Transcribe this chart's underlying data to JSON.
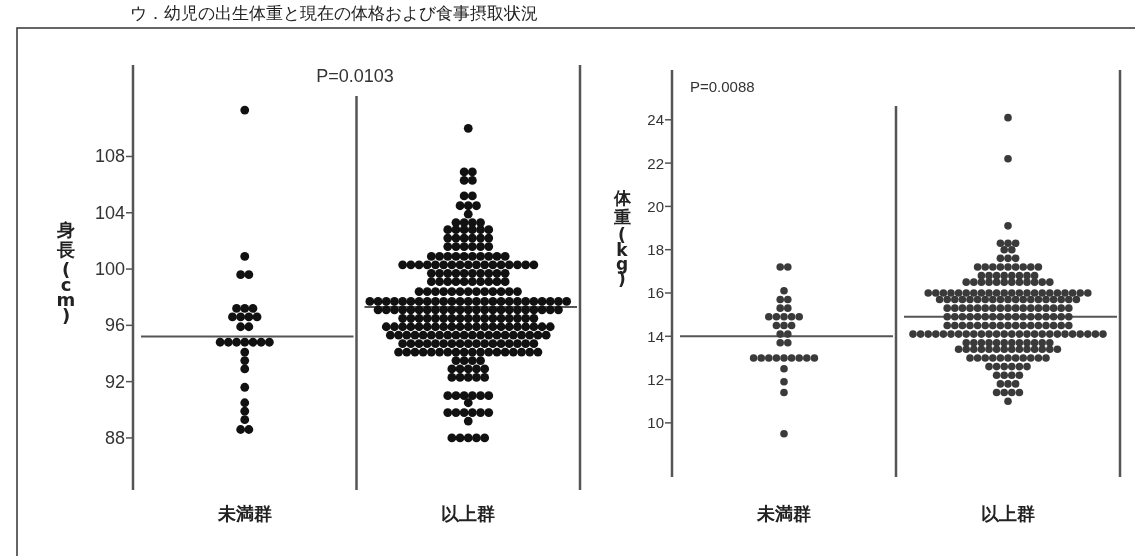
{
  "chart_data": [
    {
      "type": "scatter",
      "title": "ウ．幼児の出生体重と現在の体格および食事摂取状況",
      "categories": [
        "未満群",
        "以上群"
      ],
      "ylabel": "身長(cm)",
      "ylim": [
        84.3,
        114.5
      ],
      "yticks": [
        88,
        92,
        96,
        100,
        104,
        108
      ],
      "marker": "circle",
      "annotations": [
        "P=0.0103"
      ],
      "ref_lines": [
        {
          "axis": "y",
          "value": 95.2,
          "color": "#555555"
        },
        {
          "axis": "y",
          "value": 97.3,
          "color": "#555555"
        }
      ],
      "series": [
        {
          "color": "#111111",
          "x": [
            "未満群",
            "未満群",
            "未満群",
            "未満群",
            "未満群",
            "未満群",
            "未満群",
            "未満群",
            "未満群",
            "未満群",
            "未満群",
            "未満群",
            "未満群",
            "未満群",
            "未満群",
            "未満群",
            "未満群",
            "未満群",
            "未満群",
            "未満群",
            "未満群",
            "未満群",
            "未満群",
            "未満群",
            "未満群",
            "未満群",
            "未満群",
            "未満群",
            "未満群"
          ],
          "values": [
            111.3,
            100.9,
            99.6,
            99.6,
            97.2,
            97.2,
            97.2,
            96.6,
            96.6,
            96.6,
            96.6,
            95.9,
            95.9,
            94.8,
            94.8,
            94.8,
            94.8,
            94.8,
            94.8,
            94.8,
            94.1,
            93.5,
            92.9,
            91.6,
            90.5,
            89.9,
            89.3,
            88.6,
            88.6
          ]
        },
        {
          "color": "#111111",
          "x": [
            "以上群",
            "以上群",
            "以上群",
            "以上群",
            "以上群",
            "以上群",
            "以上群",
            "以上群",
            "以上群",
            "以上群",
            "以上群",
            "以上群",
            "以上群",
            "以上群",
            "以上群",
            "以上群",
            "以上群",
            "以上群",
            "以上群",
            "以上群",
            "以上群",
            "以上群",
            "以上群",
            "以上群",
            "以上群",
            "以上群",
            "以上群",
            "以上群",
            "以上群",
            "以上群",
            "以上群",
            "以上群",
            "以上群",
            "以上群",
            "以上群",
            "以上群",
            "以上群",
            "以上群",
            "以上群",
            "以上群",
            "以上群",
            "以上群",
            "以上群",
            "以上群",
            "以上群",
            "以上群",
            "以上群",
            "以上群",
            "以上群",
            "以上群",
            "以上群",
            "以上群",
            "以上群",
            "以上群",
            "以上群",
            "以上群",
            "以上群",
            "以上群",
            "以上群",
            "以上群",
            "以上群",
            "以上群",
            "以上群",
            "以上群",
            "以上群",
            "以上群",
            "以上群",
            "以上群",
            "以上群",
            "以上群",
            "以上群",
            "以上群",
            "以上群",
            "以上群",
            "以上群",
            "以上群",
            "以上群",
            "以上群",
            "以上群",
            "以上群",
            "以上群",
            "以上群",
            "以上群",
            "以上群",
            "以上群",
            "以上群",
            "以上群",
            "以上群",
            "以上群",
            "以上群",
            "以上群",
            "以上群",
            "以上群",
            "以上群",
            "以上群",
            "以上群",
            "以上群",
            "以上群",
            "以上群",
            "以上群",
            "以上群",
            "以上群",
            "以上群",
            "以上群",
            "以上群",
            "以上群",
            "以上群",
            "以上群",
            "以上群",
            "以上群",
            "以上群",
            "以上群",
            "以上群",
            "以上群",
            "以上群",
            "以上群",
            "以上群",
            "以上群",
            "以上群",
            "以上群",
            "以上群",
            "以上群",
            "以上群",
            "以上群",
            "以上群",
            "以上群",
            "以上群",
            "以上群",
            "以上群",
            "以上群",
            "以上群",
            "以上群",
            "以上群",
            "以上群",
            "以上群",
            "以上群",
            "以上群",
            "以上群",
            "以上群",
            "以上群",
            "以上群",
            "以上群",
            "以上群",
            "以上群",
            "以上群",
            "以上群",
            "以上群",
            "以上群",
            "以上群",
            "以上群",
            "以上群",
            "以上群",
            "以上群",
            "以上群",
            "以上群",
            "以上群",
            "以上群",
            "以上群",
            "以上群",
            "以上群",
            "以上群",
            "以上群",
            "以上群",
            "以上群",
            "以上群",
            "以上群",
            "以上群",
            "以上群",
            "以上群",
            "以上群",
            "以上群",
            "以上群",
            "以上群",
            "以上群",
            "以上群",
            "以上群",
            "以上群",
            "以上群",
            "以上群",
            "以上群",
            "以上群",
            "以上群",
            "以上群",
            "以上群",
            "以上群",
            "以上群",
            "以上群",
            "以上群",
            "以上群",
            "以上群",
            "以上群",
            "以上群",
            "以上群",
            "以上群",
            "以上群",
            "以上群",
            "以上群",
            "以上群",
            "以上群",
            "以上群",
            "以上群",
            "以上群",
            "以上群",
            "以上群",
            "以上群",
            "以上群",
            "以上群",
            "以上群",
            "以上群",
            "以上群",
            "以上群",
            "以上群",
            "以上群",
            "以上群",
            "以上群",
            "以上群",
            "以上群",
            "以上群",
            "以上群",
            "以上群",
            "以上群",
            "以上群",
            "以上群",
            "以上群",
            "以上群",
            "以上群",
            "以上群",
            "以上群",
            "以上群",
            "以上群",
            "以上群",
            "以上群",
            "以上群",
            "以上群",
            "以上群",
            "以上群",
            "以上群",
            "以上群",
            "以上群",
            "以上群",
            "以上群",
            "以上群",
            "以上群",
            "以上群",
            "以上群",
            "以上群",
            "以上群",
            "以上群",
            "以上群",
            "以上群",
            "以上群",
            "以上群",
            "以上群",
            "以上群",
            "以上群",
            "以上群",
            "以上群",
            "以上群",
            "以上群",
            "以上群",
            "以上群",
            "以上群",
            "以上群",
            "以上群",
            "以上群",
            "以上群",
            "以上群"
          ],
          "values": [
            110,
            106.9,
            106.9,
            106.3,
            106.3,
            105.2,
            105.2,
            104.5,
            104.5,
            104.5,
            103.9,
            103.3,
            103.3,
            103.3,
            103.3,
            102.8,
            102.8,
            102.8,
            102.8,
            102.8,
            102.8,
            102.2,
            102.2,
            102.2,
            102.2,
            102.2,
            102.2,
            101.6,
            101.6,
            101.6,
            101.6,
            101.6,
            101.6,
            100.9,
            100.9,
            100.9,
            100.9,
            100.9,
            100.9,
            100.9,
            100.9,
            100.9,
            100.9,
            100.3,
            100.3,
            100.3,
            100.3,
            100.3,
            100.3,
            100.3,
            100.3,
            100.3,
            100.3,
            100.3,
            100.3,
            100.3,
            100.3,
            100.3,
            100.3,
            100.3,
            99.7,
            99.7,
            99.7,
            99.7,
            99.7,
            99.7,
            99.7,
            99.7,
            99.7,
            99.7,
            99.1,
            99.1,
            99.1,
            99.1,
            99.1,
            99.1,
            99.1,
            99.1,
            99.1,
            99.1,
            98.4,
            98.4,
            98.4,
            98.4,
            98.4,
            98.4,
            98.4,
            98.4,
            98.4,
            98.4,
            98.4,
            98.4,
            98.4,
            97.7,
            97.7,
            97.7,
            97.7,
            97.7,
            97.7,
            97.7,
            97.7,
            97.7,
            97.7,
            97.7,
            97.7,
            97.7,
            97.7,
            97.7,
            97.7,
            97.7,
            97.7,
            97.7,
            97.7,
            97.7,
            97.7,
            97.7,
            97.7,
            97.7,
            97.1,
            97.1,
            97.1,
            97.1,
            97.1,
            97.1,
            97.1,
            97.1,
            97.1,
            97.1,
            97.1,
            97.1,
            97.1,
            97.1,
            97.1,
            97.1,
            97.1,
            97.1,
            97.1,
            97.1,
            97.1,
            97.1,
            97.1,
            96.5,
            96.5,
            96.5,
            96.5,
            96.5,
            96.5,
            96.5,
            96.5,
            96.5,
            96.5,
            96.5,
            96.5,
            96.5,
            96.5,
            96.5,
            96.5,
            96.5,
            95.9,
            95.9,
            95.9,
            95.9,
            95.9,
            95.9,
            95.9,
            95.9,
            95.9,
            95.9,
            95.9,
            95.9,
            95.9,
            95.9,
            95.9,
            95.9,
            95.9,
            95.9,
            95.9,
            95.9,
            95.9,
            95.3,
            95.3,
            95.3,
            95.3,
            95.3,
            95.3,
            95.3,
            95.3,
            95.3,
            95.3,
            95.3,
            95.3,
            95.3,
            95.3,
            95.3,
            95.3,
            95.3,
            95.3,
            95.3,
            95.3,
            94.7,
            94.7,
            94.7,
            94.7,
            94.7,
            94.7,
            94.7,
            94.7,
            94.7,
            94.7,
            94.7,
            94.7,
            94.7,
            94.7,
            94.7,
            94.7,
            94.7,
            94.1,
            94.1,
            94.1,
            94.1,
            94.1,
            94.1,
            94.1,
            94.1,
            94.1,
            94.1,
            94.1,
            94.1,
            94.1,
            94.1,
            94.1,
            94.1,
            94.1,
            94.1,
            93.5,
            93.5,
            93.5,
            93.5,
            92.9,
            92.9,
            92.9,
            92.9,
            92.9,
            92.3,
            92.3,
            92.3,
            92.3,
            92.3,
            91,
            91,
            91,
            91,
            91,
            91,
            90.5,
            89.8,
            89.8,
            89.8,
            89.8,
            89.8,
            89.8,
            89.2,
            88,
            88,
            88,
            88,
            88
          ]
        }
      ]
    },
    {
      "type": "scatter",
      "categories": [
        "未満群",
        "以上群"
      ],
      "ylabel": "体重(kg)",
      "ylim": [
        7.5,
        26.3
      ],
      "yticks": [
        10,
        12,
        14,
        16,
        18,
        20,
        22,
        24
      ],
      "marker": "circle",
      "annotations": [
        "P=0.0088"
      ],
      "ref_lines": [
        {
          "axis": "y",
          "value": 14.0,
          "color": "#555555"
        },
        {
          "axis": "y",
          "value": 14.9,
          "color": "#555555"
        }
      ],
      "series": [
        {
          "color": "#3a3a3a",
          "x": [
            "未満群",
            "未満群",
            "未満群",
            "未満群",
            "未満群",
            "未満群",
            "未満群",
            "未満群",
            "未満群",
            "未満群",
            "未満群",
            "未満群",
            "未満群",
            "未満群",
            "未満群",
            "未満群",
            "未満群",
            "未満群",
            "未満群",
            "未満群",
            "未満群",
            "未満群",
            "未満群",
            "未満群",
            "未満群",
            "未満群",
            "未満群",
            "未満群",
            "未満群",
            "未満群",
            "未満群",
            "未満群"
          ],
          "values": [
            17.2,
            17.2,
            16.1,
            15.7,
            15.7,
            15.3,
            15.3,
            14.9,
            14.9,
            14.9,
            14.9,
            14.9,
            14.5,
            14.5,
            14.5,
            14.1,
            14.1,
            13.7,
            13.7,
            13,
            13,
            13,
            13,
            13,
            13,
            13,
            13,
            13,
            12.5,
            11.9,
            11.4,
            9.5
          ]
        },
        {
          "color": "#3a3a3a",
          "x": [
            "以上群",
            "以上群",
            "以上群",
            "以上群",
            "以上群",
            "以上群",
            "以上群",
            "以上群",
            "以上群",
            "以上群",
            "以上群",
            "以上群",
            "以上群",
            "以上群",
            "以上群",
            "以上群",
            "以上群",
            "以上群",
            "以上群",
            "以上群",
            "以上群",
            "以上群",
            "以上群",
            "以上群",
            "以上群",
            "以上群",
            "以上群",
            "以上群",
            "以上群",
            "以上群",
            "以上群",
            "以上群",
            "以上群",
            "以上群",
            "以上群",
            "以上群",
            "以上群",
            "以上群",
            "以上群",
            "以上群",
            "以上群",
            "以上群",
            "以上群",
            "以上群",
            "以上群",
            "以上群",
            "以上群",
            "以上群",
            "以上群",
            "以上群",
            "以上群",
            "以上群",
            "以上群",
            "以上群",
            "以上群",
            "以上群",
            "以上群",
            "以上群",
            "以上群",
            "以上群",
            "以上群",
            "以上群",
            "以上群",
            "以上群",
            "以上群",
            "以上群",
            "以上群",
            "以上群",
            "以上群",
            "以上群",
            "以上群",
            "以上群",
            "以上群",
            "以上群",
            "以上群",
            "以上群",
            "以上群",
            "以上群",
            "以上群",
            "以上群",
            "以上群",
            "以上群",
            "以上群",
            "以上群",
            "以上群",
            "以上群",
            "以上群",
            "以上群",
            "以上群",
            "以上群",
            "以上群",
            "以上群",
            "以上群",
            "以上群",
            "以上群",
            "以上群",
            "以上群",
            "以上群",
            "以上群",
            "以上群",
            "以上群",
            "以上群",
            "以上群",
            "以上群",
            "以上群",
            "以上群",
            "以上群",
            "以上群",
            "以上群",
            "以上群",
            "以上群",
            "以上群",
            "以上群",
            "以上群",
            "以上群",
            "以上群",
            "以上群",
            "以上群",
            "以上群",
            "以上群",
            "以上群",
            "以上群",
            "以上群",
            "以上群",
            "以上群",
            "以上群",
            "以上群",
            "以上群",
            "以上群",
            "以上群",
            "以上群",
            "以上群",
            "以上群",
            "以上群",
            "以上群",
            "以上群",
            "以上群",
            "以上群",
            "以上群",
            "以上群",
            "以上群",
            "以上群",
            "以上群",
            "以上群",
            "以上群",
            "以上群",
            "以上群",
            "以上群",
            "以上群",
            "以上群",
            "以上群",
            "以上群",
            "以上群",
            "以上群",
            "以上群",
            "以上群",
            "以上群",
            "以上群",
            "以上群",
            "以上群",
            "以上群",
            "以上群",
            "以上群",
            "以上群",
            "以上群",
            "以上群",
            "以上群",
            "以上群",
            "以上群",
            "以上群",
            "以上群",
            "以上群",
            "以上群",
            "以上群",
            "以上群",
            "以上群",
            "以上群",
            "以上群",
            "以上群",
            "以上群",
            "以上群",
            "以上群",
            "以上群",
            "以上群",
            "以上群",
            "以上群",
            "以上群",
            "以上群",
            "以上群",
            "以上群",
            "以上群",
            "以上群",
            "以上群",
            "以上群",
            "以上群",
            "以上群",
            "以上群",
            "以上群",
            "以上群",
            "以上群",
            "以上群",
            "以上群",
            "以上群",
            "以上群",
            "以上群",
            "以上群",
            "以上群",
            "以上群",
            "以上群",
            "以上群",
            "以上群",
            "以上群",
            "以上群"
          ],
          "values": [
            24.1,
            22.2,
            19.1,
            18.3,
            18.3,
            18.3,
            18,
            18,
            17.6,
            17.6,
            17.6,
            17.2,
            17.2,
            17.2,
            17.2,
            17.2,
            17.2,
            17.2,
            17.2,
            17.2,
            16.8,
            16.8,
            16.8,
            16.8,
            16.8,
            16.8,
            16.8,
            16.8,
            16.5,
            16.5,
            16.5,
            16.5,
            16.5,
            16.5,
            16.5,
            16.5,
            16.5,
            16.5,
            16.5,
            16.5,
            16,
            16,
            16,
            16,
            16,
            16,
            16,
            16,
            16,
            16,
            16,
            16,
            16,
            16,
            16,
            16,
            16,
            16,
            16,
            16,
            16,
            16,
            15.7,
            15.7,
            15.7,
            15.7,
            15.7,
            15.7,
            15.7,
            15.7,
            15.7,
            15.7,
            15.7,
            15.7,
            15.7,
            15.7,
            15.7,
            15.7,
            15.7,
            15.7,
            15.7,
            15.3,
            15.3,
            15.3,
            15.3,
            15.3,
            15.3,
            15.3,
            15.3,
            15.3,
            15.3,
            15.3,
            15.3,
            15.3,
            15.3,
            15.3,
            15.3,
            15.3,
            14.9,
            14.9,
            14.9,
            14.9,
            14.9,
            14.9,
            14.9,
            14.9,
            14.9,
            14.9,
            14.9,
            14.9,
            14.9,
            14.9,
            14.9,
            14.9,
            14.9,
            14.5,
            14.5,
            14.5,
            14.5,
            14.5,
            14.5,
            14.5,
            14.5,
            14.5,
            14.5,
            14.5,
            14.5,
            14.5,
            14.5,
            14.5,
            14.5,
            14.5,
            14.1,
            14.1,
            14.1,
            14.1,
            14.1,
            14.1,
            14.1,
            14.1,
            14.1,
            14.1,
            14.1,
            14.1,
            14.1,
            14.1,
            14.1,
            14.1,
            14.1,
            14.1,
            14.1,
            14.1,
            14.1,
            14.1,
            14.1,
            14.1,
            14.1,
            14.1,
            13.7,
            13.7,
            13.7,
            13.7,
            13.7,
            13.7,
            13.7,
            13.7,
            13.7,
            13.7,
            13.7,
            13.7,
            13.4,
            13.4,
            13.4,
            13.4,
            13.4,
            13.4,
            13.4,
            13.4,
            13.4,
            13.4,
            13.4,
            13.4,
            13.4,
            13.4,
            13,
            13,
            13,
            13,
            13,
            13,
            13,
            13,
            13,
            13,
            13,
            12.6,
            12.6,
            12.6,
            12.6,
            12.6,
            12.6,
            12.2,
            12.2,
            12.2,
            12.2,
            11.8,
            11.8,
            11.8,
            11.4,
            11.4,
            11.4,
            11.4,
            11
          ]
        }
      ]
    }
  ]
}
